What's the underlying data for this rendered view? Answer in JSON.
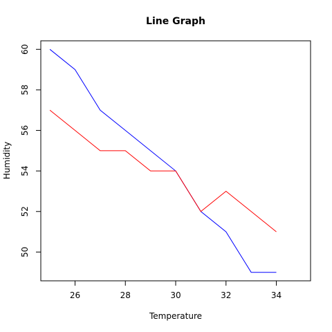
{
  "chart_data": {
    "type": "line",
    "title": "Line Graph",
    "xlabel": "Temperature",
    "ylabel": "Humidity",
    "x": [
      25,
      26,
      27,
      28,
      29,
      30,
      31,
      32,
      33,
      34
    ],
    "xlim": [
      24.64,
      35.36
    ],
    "ylim": [
      48.58,
      60.42
    ],
    "xticks": [
      26,
      28,
      30,
      32,
      34
    ],
    "yticks": [
      50,
      52,
      54,
      56,
      58,
      60
    ],
    "grid": false,
    "series": [
      {
        "color": "#0000ff",
        "values": [
          60,
          59,
          57,
          56,
          55,
          54,
          52,
          51,
          49,
          49
        ]
      },
      {
        "color": "#ff0000",
        "values": [
          57,
          56,
          55,
          55,
          54,
          54,
          52,
          53,
          52,
          51
        ]
      }
    ]
  }
}
